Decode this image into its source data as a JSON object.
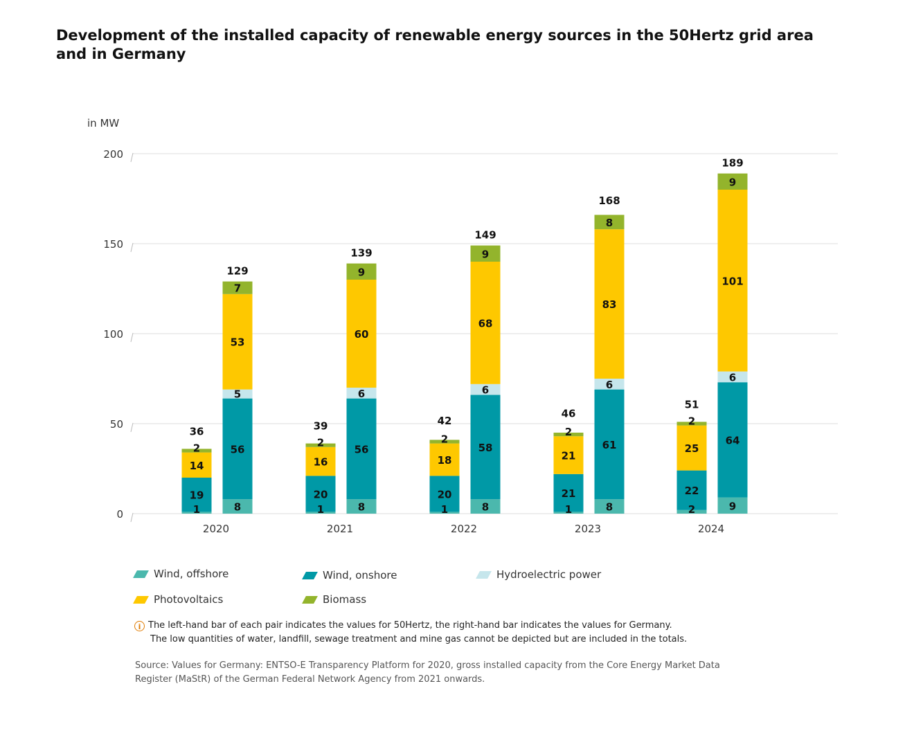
{
  "title": "Development of the installed capacity of renewable energy sources in the 50Hertz grid area and in Germany",
  "chart_data": {
    "type": "bar",
    "stacked": true,
    "unit_label": "in MW",
    "ylim": [
      0,
      200
    ],
    "yticks": [
      0,
      50,
      100,
      150,
      200
    ],
    "grid": true,
    "categories": [
      "2020",
      "2021",
      "2022",
      "2023",
      "2024"
    ],
    "bars_per_category": [
      "50Hertz",
      "Germany"
    ],
    "series": [
      {
        "name": "Wind, offshore",
        "color": "#4bb8ad",
        "values_50hertz": [
          1,
          1,
          1,
          1,
          2
        ],
        "values_germany": [
          8,
          8,
          8,
          8,
          9
        ]
      },
      {
        "name": "Wind, onshore",
        "color": "#0099a6",
        "values_50hertz": [
          19,
          20,
          20,
          21,
          22
        ],
        "values_germany": [
          56,
          56,
          58,
          61,
          64
        ]
      },
      {
        "name": "Hydroelectric power",
        "color": "#c6e6ec",
        "values_50hertz": [
          0,
          0,
          0,
          0,
          0
        ],
        "values_germany": [
          5,
          6,
          6,
          6,
          6
        ]
      },
      {
        "name": "Photovoltaics",
        "color": "#fec800",
        "values_50hertz": [
          14,
          16,
          18,
          21,
          25
        ],
        "values_germany": [
          53,
          60,
          68,
          83,
          101
        ]
      },
      {
        "name": "Biomass",
        "color": "#93b42c",
        "values_50hertz": [
          2,
          2,
          2,
          2,
          2
        ],
        "values_germany": [
          7,
          9,
          9,
          8,
          9
        ]
      }
    ],
    "totals_50hertz": [
      36,
      39,
      42,
      46,
      51
    ],
    "totals_germany": [
      129,
      139,
      149,
      168,
      189
    ],
    "legend_placement": "bottom-left"
  },
  "legend": [
    {
      "label": "Wind, offshore",
      "color": "#4bb8ad"
    },
    {
      "label": "Wind, onshore",
      "color": "#0099a6"
    },
    {
      "label": "Hydroelectric power",
      "color": "#c6e6ec"
    },
    {
      "label": "Photovoltaics",
      "color": "#fec800"
    },
    {
      "label": "Biomass",
      "color": "#93b42c"
    }
  ],
  "note": {
    "line1": "The left-hand bar of each pair indicates the values for 50Hertz, the right-hand bar indicates the values for Germany.",
    "line2": "The low quantities of water, landfill, sewage treatment and mine gas cannot be depicted but are included in the totals."
  },
  "source": "Source: Values for Germany: ENTSO-E Transparency Platform for 2020, gross installed capacity from the Core Energy Market Data Register (MaStR) of the German Federal Network Agency from 2021 onwards."
}
